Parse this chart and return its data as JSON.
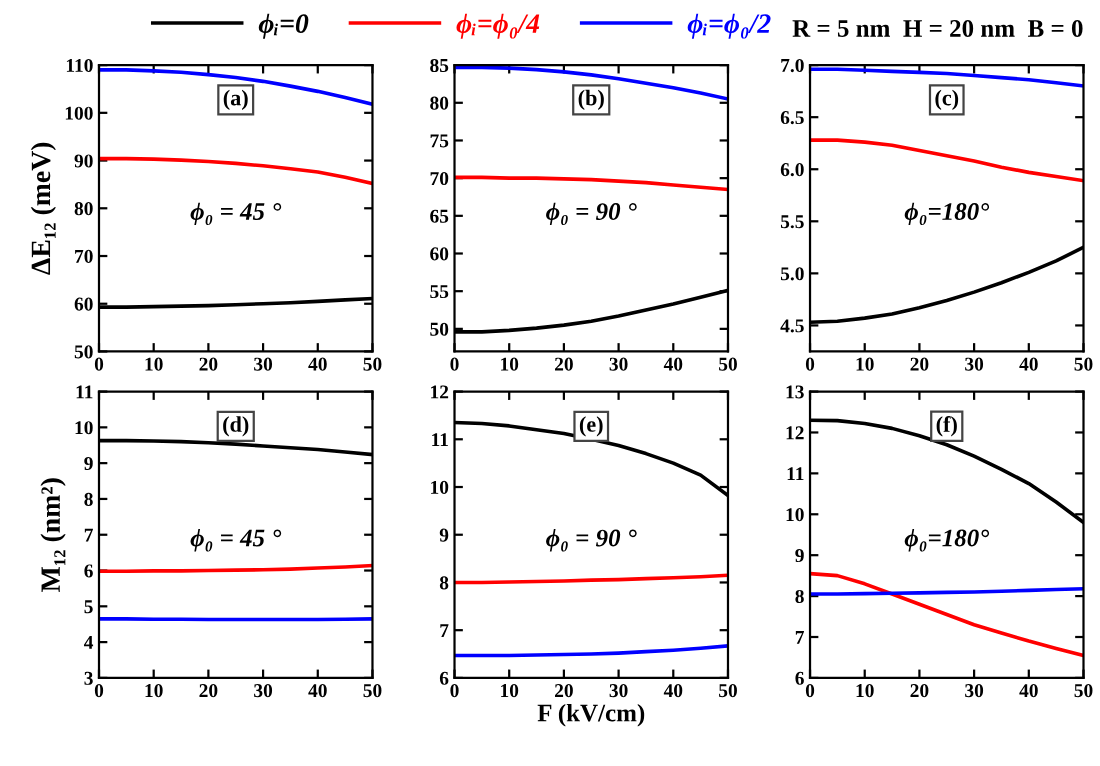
{
  "chart_data": [
    {
      "type": "line",
      "ylabel": "ΔE₁₂ (meV)",
      "annotations": [
        "(a)",
        "ϕ₀ = 45 °",
        "R = 5 nm  H = 20 nm  B = 0"
      ],
      "legend": "top",
      "x": [
        0,
        5,
        10,
        15,
        20,
        25,
        30,
        35,
        40,
        45,
        50
      ],
      "xlim": [
        0,
        50
      ],
      "xticks": [
        0,
        10,
        20,
        30,
        40,
        50
      ],
      "ylim": [
        50,
        110
      ],
      "yticks": [
        50,
        60,
        70,
        80,
        90,
        100,
        110
      ],
      "series": [
        {
          "name": "ϕᵢ=0",
          "color": "#000000",
          "values": [
            59.3,
            59.3,
            59.4,
            59.5,
            59.6,
            59.8,
            60.0,
            60.2,
            60.5,
            60.8,
            61.1
          ]
        },
        {
          "name": "ϕᵢ=ϕ₀/4",
          "color": "#ff0000",
          "values": [
            90.4,
            90.4,
            90.3,
            90.1,
            89.8,
            89.4,
            88.9,
            88.3,
            87.6,
            86.5,
            85.2
          ]
        },
        {
          "name": "ϕᵢ=ϕ₀/2",
          "color": "#0000ff",
          "values": [
            109.0,
            109.0,
            108.8,
            108.5,
            108.0,
            107.4,
            106.6,
            105.6,
            104.5,
            103.2,
            101.8
          ]
        }
      ]
    },
    {
      "type": "line",
      "annotations": [
        "(b)",
        "ϕ₀ = 90 °"
      ],
      "x": [
        0,
        5,
        10,
        15,
        20,
        25,
        30,
        35,
        40,
        45,
        50
      ],
      "xlim": [
        0,
        50
      ],
      "xticks": [
        0,
        10,
        20,
        30,
        40,
        50
      ],
      "ylim": [
        47,
        85
      ],
      "yticks": [
        50,
        55,
        60,
        65,
        70,
        75,
        80,
        85
      ],
      "series": [
        {
          "color": "#000000",
          "values": [
            49.6,
            49.6,
            49.8,
            50.1,
            50.5,
            51.0,
            51.7,
            52.5,
            53.3,
            54.2,
            55.1
          ]
        },
        {
          "color": "#ff0000",
          "values": [
            70.1,
            70.1,
            70.0,
            70.0,
            69.9,
            69.8,
            69.6,
            69.4,
            69.1,
            68.8,
            68.5
          ]
        },
        {
          "color": "#0000ff",
          "values": [
            84.7,
            84.7,
            84.6,
            84.4,
            84.1,
            83.7,
            83.2,
            82.6,
            82.0,
            81.3,
            80.5
          ]
        }
      ]
    },
    {
      "type": "line",
      "annotations": [
        "(c)",
        "ϕ₀=180°"
      ],
      "x": [
        0,
        5,
        10,
        15,
        20,
        25,
        30,
        35,
        40,
        45,
        50
      ],
      "xlim": [
        0,
        50
      ],
      "xticks": [
        0,
        10,
        20,
        30,
        40,
        50
      ],
      "ylim": [
        4.25,
        7.0
      ],
      "yticks": [
        4.5,
        {
          "value": 5,
          "label": "5.0"
        },
        5.5,
        {
          "value": 6,
          "label": "6.0"
        },
        6.5,
        {
          "value": 7,
          "label": "7.0"
        }
      ],
      "series": [
        {
          "color": "#000000",
          "values": [
            4.53,
            4.54,
            4.57,
            4.61,
            4.67,
            4.74,
            4.82,
            4.91,
            5.01,
            5.12,
            5.25
          ]
        },
        {
          "color": "#ff0000",
          "values": [
            6.28,
            6.28,
            6.26,
            6.23,
            6.18,
            6.13,
            6.08,
            6.02,
            5.97,
            5.93,
            5.89
          ]
        },
        {
          "color": "#0000ff",
          "values": [
            6.96,
            6.96,
            6.95,
            6.94,
            6.93,
            6.92,
            6.9,
            6.88,
            6.86,
            6.83,
            6.8
          ]
        }
      ]
    },
    {
      "type": "line",
      "ylabel": "M₁₂ (nm²)",
      "annotations": [
        "(d)",
        "ϕ₀ = 45 °"
      ],
      "x": [
        0,
        5,
        10,
        15,
        20,
        25,
        30,
        35,
        40,
        45,
        50
      ],
      "xlim": [
        0,
        50
      ],
      "xticks": [
        0,
        10,
        20,
        30,
        40,
        50
      ],
      "ylim": [
        3,
        11
      ],
      "yticks": [
        3,
        4,
        5,
        6,
        7,
        8,
        9,
        10,
        11
      ],
      "series": [
        {
          "color": "#000000",
          "values": [
            9.63,
            9.63,
            9.62,
            9.6,
            9.57,
            9.53,
            9.48,
            9.43,
            9.38,
            9.31,
            9.24
          ]
        },
        {
          "color": "#ff0000",
          "values": [
            5.98,
            5.98,
            5.99,
            5.99,
            6.0,
            6.01,
            6.02,
            6.04,
            6.07,
            6.1,
            6.14
          ]
        },
        {
          "color": "#0000ff",
          "values": [
            4.65,
            4.65,
            4.64,
            4.64,
            4.63,
            4.63,
            4.63,
            4.63,
            4.63,
            4.64,
            4.65
          ]
        }
      ]
    },
    {
      "type": "line",
      "xlabel": "F (kV/cm)",
      "annotations": [
        "(e)",
        "ϕ₀ = 90 °"
      ],
      "x": [
        0,
        5,
        10,
        15,
        20,
        25,
        30,
        35,
        40,
        45,
        50
      ],
      "xlim": [
        0,
        50
      ],
      "xticks": [
        0,
        10,
        20,
        30,
        40,
        50
      ],
      "ylim": [
        6,
        12
      ],
      "yticks": [
        6,
        7,
        8,
        9,
        10,
        11,
        12
      ],
      "series": [
        {
          "color": "#000000",
          "values": [
            11.35,
            11.33,
            11.28,
            11.2,
            11.12,
            11.0,
            10.87,
            10.7,
            10.5,
            10.25,
            9.82
          ]
        },
        {
          "color": "#ff0000",
          "values": [
            8.0,
            8.0,
            8.01,
            8.02,
            8.03,
            8.05,
            8.06,
            8.08,
            8.1,
            8.12,
            8.15
          ]
        },
        {
          "color": "#0000ff",
          "values": [
            6.47,
            6.47,
            6.47,
            6.48,
            6.49,
            6.5,
            6.52,
            6.55,
            6.58,
            6.62,
            6.67
          ]
        }
      ]
    },
    {
      "type": "line",
      "annotations": [
        "(f)",
        "ϕ₀=180°"
      ],
      "x": [
        0,
        5,
        10,
        15,
        20,
        25,
        30,
        35,
        40,
        45,
        50
      ],
      "xlim": [
        0,
        50
      ],
      "xticks": [
        0,
        10,
        20,
        30,
        40,
        50
      ],
      "ylim": [
        6,
        13
      ],
      "yticks": [
        6,
        7,
        8,
        9,
        10,
        11,
        12,
        13
      ],
      "series": [
        {
          "color": "#000000",
          "values": [
            12.3,
            12.29,
            12.22,
            12.1,
            11.92,
            11.7,
            11.42,
            11.1,
            10.75,
            10.3,
            9.8
          ]
        },
        {
          "color": "#ff0000",
          "values": [
            8.55,
            8.5,
            8.3,
            8.05,
            7.8,
            7.55,
            7.3,
            7.1,
            6.9,
            6.72,
            6.55
          ]
        },
        {
          "color": "#0000ff",
          "values": [
            8.05,
            8.05,
            8.06,
            8.07,
            8.08,
            8.09,
            8.1,
            8.12,
            8.14,
            8.16,
            8.18
          ]
        }
      ]
    }
  ]
}
